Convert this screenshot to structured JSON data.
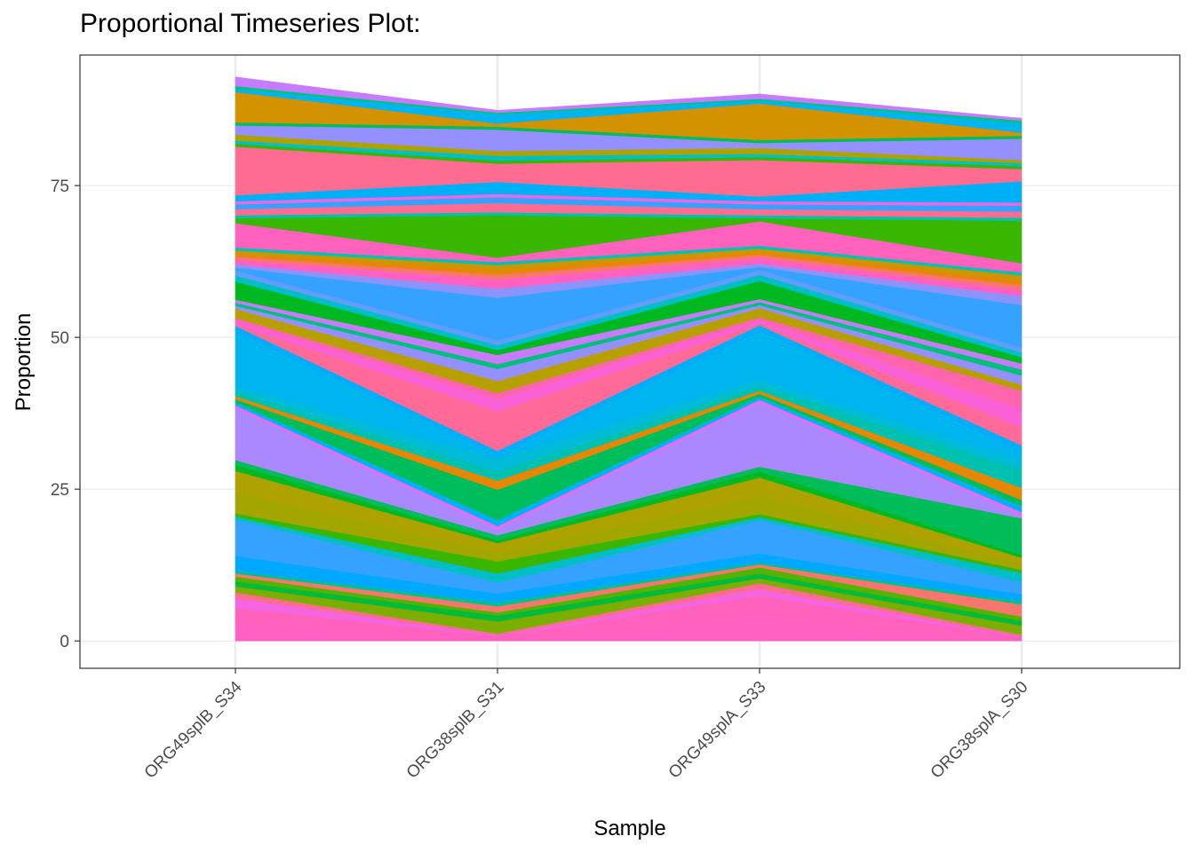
{
  "chart_data": {
    "type": "area",
    "stacked": true,
    "title": "Proportional Timeseries Plot:",
    "xlabel": "Sample",
    "ylabel": "Proportion",
    "categories": [
      "ORG49splB_S34",
      "ORG38splB_S31",
      "ORG49splA_S33",
      "ORG38splA_S30"
    ],
    "ylim": [
      -4.5,
      96.5
    ],
    "yticks": [
      0,
      25,
      50,
      75
    ],
    "grid": true,
    "legend": "none",
    "series": [
      {
        "color": "#FF61C3",
        "values": [
          3.0,
          0.3,
          3.5,
          0.2
        ]
      },
      {
        "color": "#FF62BC",
        "values": [
          2.5,
          0.4,
          4.0,
          0.3
        ]
      },
      {
        "color": "#F564E3",
        "values": [
          1.5,
          0.2,
          1.0,
          0.2
        ]
      },
      {
        "color": "#FF6C91",
        "values": [
          1.0,
          0.3,
          1.0,
          0.3
        ]
      },
      {
        "color": "#7CAE00",
        "values": [
          1.0,
          2.0,
          0.8,
          1.5
        ]
      },
      {
        "color": "#00BA38",
        "values": [
          0.8,
          1.0,
          0.8,
          0.8
        ]
      },
      {
        "color": "#53B400",
        "values": [
          0.8,
          0.5,
          1.0,
          0.7
        ]
      },
      {
        "color": "#F8766D",
        "values": [
          0.5,
          1.0,
          0.5,
          2.0
        ]
      },
      {
        "color": "#00C08B",
        "values": [
          0.4,
          0.6,
          0.3,
          0.5
        ]
      },
      {
        "color": "#00A9FF",
        "values": [
          2.5,
          1.5,
          1.5,
          1.2
        ]
      },
      {
        "color": "#35A2FF",
        "values": [
          6.0,
          1.8,
          5.5,
          2.0
        ]
      },
      {
        "color": "#00BFC4",
        "values": [
          0.5,
          1.5,
          0.5,
          1.5
        ]
      },
      {
        "color": "#39B600",
        "values": [
          0.5,
          2.0,
          0.5,
          0.5
        ]
      },
      {
        "color": "#A3A500",
        "values": [
          3.5,
          1.5,
          3.0,
          1.0
        ]
      },
      {
        "color": "#AEA200",
        "values": [
          3.5,
          1.5,
          3.0,
          1.0
        ]
      },
      {
        "color": "#00B81F",
        "values": [
          1.0,
          0.5,
          1.0,
          0.5
        ]
      },
      {
        "color": "#00BC59",
        "values": [
          0.8,
          0.8,
          0.8,
          6.0
        ]
      },
      {
        "color": "#AC88FF",
        "values": [
          8.5,
          1.0,
          10.5,
          0.5
        ]
      },
      {
        "color": "#E76BF3",
        "values": [
          0.5,
          0.5,
          0.5,
          0.5
        ]
      },
      {
        "color": "#00B0F6",
        "values": [
          0.5,
          1.0,
          0.5,
          1.0
        ]
      },
      {
        "color": "#00BD5C",
        "values": [
          0.5,
          5.0,
          0.5,
          1.0
        ]
      },
      {
        "color": "#E58700",
        "values": [
          0.5,
          1.5,
          0.5,
          2.0
        ]
      },
      {
        "color": "#00C0AF",
        "values": [
          0.8,
          1.5,
          0.8,
          3.0
        ]
      },
      {
        "color": "#00BCD8",
        "values": [
          0.8,
          2.0,
          1.0,
          1.5
        ]
      },
      {
        "color": "#00B4EF",
        "values": [
          9.0,
          0.6,
          8.0,
          1.5
        ]
      },
      {
        "color": "#00ADFA",
        "values": [
          1.0,
          0.8,
          1.0,
          1.0
        ]
      },
      {
        "color": "#FF6A98",
        "values": [
          0.3,
          6.5,
          0.3,
          3.0
        ]
      },
      {
        "color": "#FB61D7",
        "values": [
          0.5,
          2.0,
          0.5,
          3.0
        ]
      },
      {
        "color": "#FF65AC",
        "values": [
          0.5,
          1.0,
          0.5,
          3.0
        ]
      },
      {
        "color": "#B79F00",
        "values": [
          1.5,
          2.0,
          1.5,
          1.0
        ]
      },
      {
        "color": "#9590FF",
        "values": [
          0.5,
          2.0,
          0.5,
          1.5
        ]
      },
      {
        "color": "#00BF7D",
        "values": [
          0.5,
          0.8,
          0.5,
          1.0
        ]
      },
      {
        "color": "#C77CFF",
        "values": [
          0.5,
          1.5,
          0.5,
          1.0
        ]
      },
      {
        "color": "#00B81F",
        "values": [
          3.0,
          0.8,
          3.0,
          1.0
        ]
      },
      {
        "color": "#00BFC4",
        "values": [
          1.0,
          0.8,
          1.0,
          0.8
        ]
      },
      {
        "color": "#619CFF",
        "values": [
          0.8,
          0.8,
          0.8,
          0.8
        ]
      },
      {
        "color": "#35A2FF",
        "values": [
          0.5,
          7.0,
          0.5,
          7.0
        ]
      },
      {
        "color": "#8B93FF",
        "values": [
          0.5,
          1.5,
          0.5,
          1.5
        ]
      },
      {
        "color": "#FF61C3",
        "values": [
          0.8,
          1.5,
          1.0,
          1.0
        ]
      },
      {
        "color": "#F8766D",
        "values": [
          0.5,
          0.8,
          0.5,
          0.8
        ]
      },
      {
        "color": "#E58700",
        "values": [
          0.5,
          0.8,
          0.5,
          0.8
        ]
      },
      {
        "color": "#C99800",
        "values": [
          0.5,
          0.8,
          0.5,
          0.8
        ]
      },
      {
        "color": "#00C0B8",
        "values": [
          0.5,
          0.5,
          0.5,
          0.5
        ]
      },
      {
        "color": "#FF62BC",
        "values": [
          4.0,
          0.7,
          4.0,
          1.5
        ]
      },
      {
        "color": "#39B600",
        "values": [
          0.8,
          7.0,
          0.5,
          7.0
        ]
      },
      {
        "color": "#00C1AA",
        "values": [
          0.5,
          0.5,
          0.5,
          0.5
        ]
      },
      {
        "color": "#FF6C91",
        "values": [
          1.0,
          1.5,
          1.0,
          1.0
        ]
      },
      {
        "color": "#35A2FF",
        "values": [
          0.8,
          1.0,
          0.8,
          1.0
        ]
      },
      {
        "color": "#F564E3",
        "values": [
          0.5,
          0.5,
          0.5,
          0.5
        ]
      },
      {
        "color": "#00B0F6",
        "values": [
          1.0,
          2.0,
          0.8,
          3.5
        ]
      },
      {
        "color": "#FF6C91",
        "values": [
          8.0,
          3.0,
          6.0,
          2.0
        ]
      },
      {
        "color": "#39B600",
        "values": [
          0.5,
          0.5,
          0.5,
          0.5
        ]
      },
      {
        "color": "#00BFC4",
        "values": [
          0.5,
          0.8,
          0.5,
          0.5
        ]
      },
      {
        "color": "#AEA200",
        "values": [
          1.0,
          0.8,
          1.0,
          0.5
        ]
      },
      {
        "color": "#9590FF",
        "values": [
          1.5,
          3.5,
          0.8,
          3.5
        ]
      },
      {
        "color": "#00BD5C",
        "values": [
          0.5,
          0.5,
          0.5,
          0.5
        ]
      },
      {
        "color": "#D39200",
        "values": [
          5.0,
          0.5,
          6.0,
          0.5
        ]
      },
      {
        "color": "#00B4EF",
        "values": [
          0.5,
          1.5,
          0.5,
          1.5
        ]
      },
      {
        "color": "#00C08B",
        "values": [
          0.5,
          0.3,
          0.3,
          0.5
        ]
      },
      {
        "color": "#C77CFF",
        "values": [
          1.5,
          0.4,
          0.8,
          0.4
        ]
      }
    ]
  }
}
